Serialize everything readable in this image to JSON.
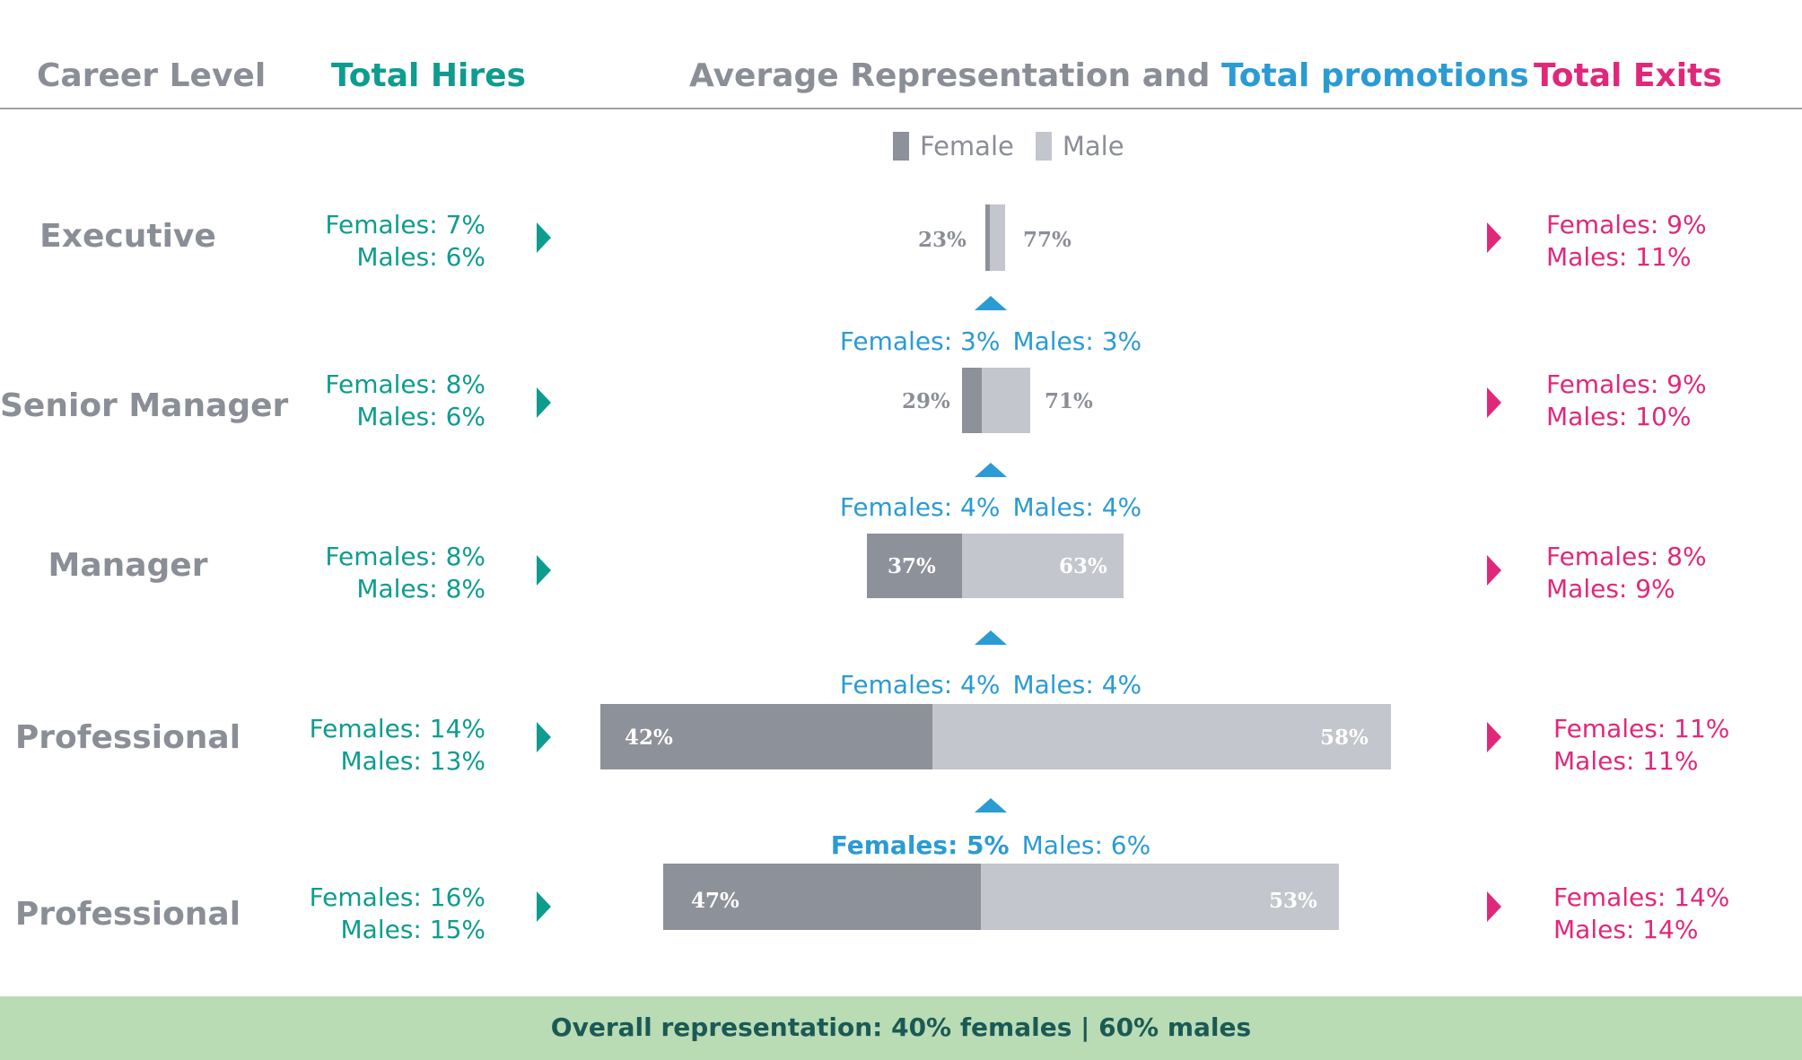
{
  "header": {
    "career_level": "Career Level",
    "total_hires": "Total Hires",
    "avg_rep": "Average Representation and ",
    "total_promotions": "Total promotions",
    "total_exits": "Total Exits"
  },
  "legend": {
    "female": "Female",
    "male": "Male"
  },
  "colors": {
    "female": "#8d9199",
    "male": "#c3c6cc",
    "hires": "#0e9c8f",
    "promotions": "#2b9bd3",
    "exits": "#e0287a",
    "footer_bg": "#b9dcb5"
  },
  "rows": [
    {
      "level": "Executive",
      "hires": {
        "females": "Females: 7%",
        "males": "Males: 6%"
      },
      "exits": {
        "females": "Females: 9%",
        "males": "Males: 11%"
      },
      "rep": {
        "female_label": "23%",
        "male_label": "77%"
      }
    },
    {
      "level": "Senior Manager",
      "hires": {
        "females": "Females: 8%",
        "males": "Males: 6%"
      },
      "exits": {
        "females": "Females: 9%",
        "males": "Males: 10%"
      },
      "rep": {
        "female_label": "29%",
        "male_label": "71%"
      }
    },
    {
      "level": "Manager",
      "hires": {
        "females": "Females: 8%",
        "males": "Males: 8%"
      },
      "exits": {
        "females": "Females: 8%",
        "males": "Males: 9%"
      },
      "rep": {
        "female_label": "37%",
        "male_label": "63%"
      }
    },
    {
      "level": "Professional",
      "hires": {
        "females": "Females: 14%",
        "males": "Males: 13%"
      },
      "exits": {
        "females": "Females: 11%",
        "males": "Males: 11%"
      },
      "rep": {
        "female_label": "42%",
        "male_label": "58%"
      }
    },
    {
      "level": "Professional",
      "hires": {
        "females": "Females: 16%",
        "males": "Males: 15%"
      },
      "exits": {
        "females": "Females: 14%",
        "males": "Males: 14%"
      },
      "rep": {
        "female_label": "47%",
        "male_label": "53%"
      }
    }
  ],
  "promotions": [
    {
      "females": "Females: 3%",
      "males": "Males: 3%"
    },
    {
      "females": "Females: 4%",
      "males": "Males: 4%"
    },
    {
      "females": "Females: 4%",
      "males": "Males: 4%"
    },
    {
      "females": "Females: 5%",
      "males": "Males: 6%"
    }
  ],
  "footer": {
    "text": "Overall representation: 40% females | 60% males"
  },
  "chart_data": {
    "type": "bar",
    "categories": [
      "Executive",
      "Senior Manager",
      "Manager",
      "Professional",
      "Professional"
    ],
    "series": [
      {
        "name": "Female",
        "values": [
          23,
          29,
          37,
          42,
          47
        ]
      },
      {
        "name": "Male",
        "values": [
          77,
          71,
          63,
          58,
          53
        ]
      }
    ],
    "title": "Average Representation and Total promotions",
    "legend": "top-center",
    "hires": {
      "females": [
        7,
        8,
        8,
        14,
        16
      ],
      "males": [
        6,
        6,
        8,
        13,
        15
      ]
    },
    "exits": {
      "females": [
        9,
        9,
        8,
        11,
        14
      ],
      "males": [
        11,
        10,
        9,
        11,
        14
      ]
    },
    "promotions_between_levels": {
      "females": [
        3,
        4,
        4,
        5
      ],
      "males": [
        3,
        4,
        4,
        6
      ]
    },
    "overall": {
      "females": 40,
      "males": 60
    }
  }
}
